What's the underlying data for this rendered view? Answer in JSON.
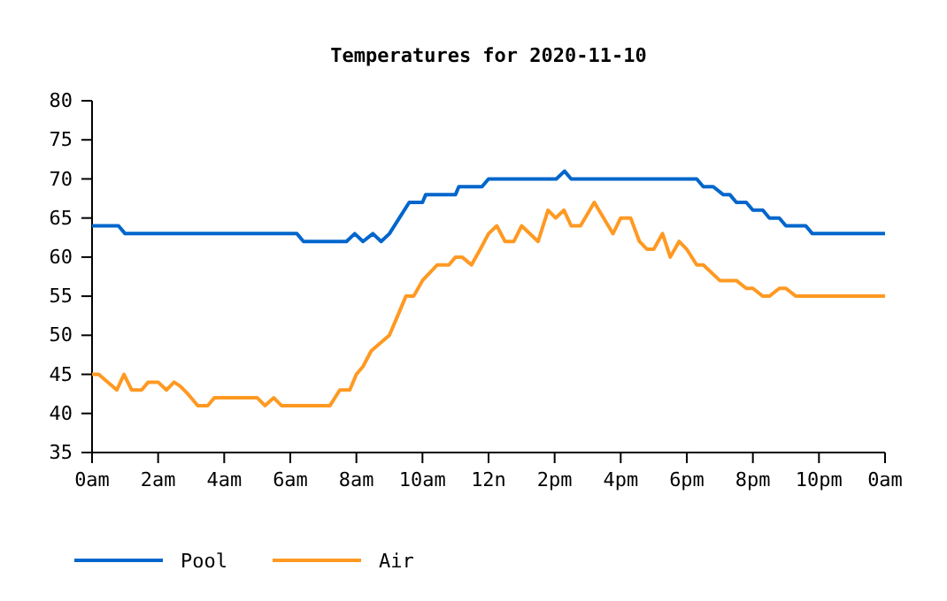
{
  "chart_data": {
    "type": "line",
    "title": "Temperatures for 2020-11-10",
    "xlim": [
      "2020-11-10T00:00",
      "2020-11-11T00:00"
    ],
    "xticks": [
      {
        "value": "2020-11-10T00:00",
        "label": "0am"
      },
      {
        "value": "2020-11-10T02:00",
        "label": "2am"
      },
      {
        "value": "2020-11-10T04:00",
        "label": "4am"
      },
      {
        "value": "2020-11-10T06:00",
        "label": "6am"
      },
      {
        "value": "2020-11-10T08:00",
        "label": "8am"
      },
      {
        "value": "2020-11-10T10:00",
        "label": "10am"
      },
      {
        "value": "2020-11-10T12:00",
        "label": "12n"
      },
      {
        "value": "2020-11-10T14:00",
        "label": "2pm"
      },
      {
        "value": "2020-11-10T16:00",
        "label": "4pm"
      },
      {
        "value": "2020-11-10T18:00",
        "label": "6pm"
      },
      {
        "value": "2020-11-10T20:00",
        "label": "8pm"
      },
      {
        "value": "2020-11-10T22:00",
        "label": "10pm"
      },
      {
        "value": "2020-11-11T00:00",
        "label": "0am"
      }
    ],
    "ylim": [
      35,
      80
    ],
    "yticks": [
      35,
      40,
      45,
      50,
      55,
      60,
      65,
      70,
      75,
      80
    ],
    "grid": false,
    "legend": "bottom left",
    "marker": "none",
    "line_style": "solid",
    "series": [
      {
        "name": "Pool",
        "color": "#0066cc",
        "x": [
          "2020-11-10T00:00",
          "2020-11-10T00:48",
          "2020-11-10T01:00",
          "2020-11-10T06:12",
          "2020-11-10T06:24",
          "2020-11-10T07:42",
          "2020-11-10T07:57",
          "2020-11-10T08:12",
          "2020-11-10T08:30",
          "2020-11-10T08:45",
          "2020-11-10T09:00",
          "2020-11-10T09:18",
          "2020-11-10T09:36",
          "2020-11-10T10:00",
          "2020-11-10T10:06",
          "2020-11-10T11:00",
          "2020-11-10T11:06",
          "2020-11-10T11:48",
          "2020-11-10T12:00",
          "2020-11-10T14:03",
          "2020-11-10T14:18",
          "2020-11-10T14:30",
          "2020-11-10T18:18",
          "2020-11-10T18:30",
          "2020-11-10T18:48",
          "2020-11-10T19:06",
          "2020-11-10T19:18",
          "2020-11-10T19:30",
          "2020-11-10T19:48",
          "2020-11-10T20:00",
          "2020-11-10T20:18",
          "2020-11-10T20:30",
          "2020-11-10T20:48",
          "2020-11-10T21:00",
          "2020-11-10T21:36",
          "2020-11-10T21:48",
          "2020-11-11T00:00"
        ],
        "values": [
          64,
          64,
          63,
          63,
          62,
          62,
          63,
          62,
          63,
          62,
          63,
          65,
          67,
          67,
          68,
          68,
          69,
          69,
          70,
          70,
          71,
          70,
          70,
          69,
          69,
          68,
          68,
          67,
          67,
          66,
          66,
          65,
          65,
          64,
          64,
          63,
          63
        ]
      },
      {
        "name": "Air",
        "color": "#ff9922",
        "x": [
          "2020-11-10T00:00",
          "2020-11-10T00:12",
          "2020-11-10T00:45",
          "2020-11-10T00:58",
          "2020-11-10T01:12",
          "2020-11-10T01:30",
          "2020-11-10T01:42",
          "2020-11-10T02:00",
          "2020-11-10T02:15",
          "2020-11-10T02:29",
          "2020-11-10T02:40",
          "2020-11-10T02:54",
          "2020-11-10T03:12",
          "2020-11-10T03:30",
          "2020-11-10T03:42",
          "2020-11-10T05:00",
          "2020-11-10T05:14",
          "2020-11-10T05:30",
          "2020-11-10T05:44",
          "2020-11-10T07:12",
          "2020-11-10T07:30",
          "2020-11-10T07:48",
          "2020-11-10T08:00",
          "2020-11-10T08:12",
          "2020-11-10T08:27",
          "2020-11-10T09:00",
          "2020-11-10T09:12",
          "2020-11-10T09:30",
          "2020-11-10T09:44",
          "2020-11-10T10:00",
          "2020-11-10T10:27",
          "2020-11-10T10:48",
          "2020-11-10T11:00",
          "2020-11-10T11:12",
          "2020-11-10T11:29",
          "2020-11-10T11:45",
          "2020-11-10T12:00",
          "2020-11-10T12:15",
          "2020-11-10T12:30",
          "2020-11-10T12:46",
          "2020-11-10T13:00",
          "2020-11-10T13:30",
          "2020-11-10T13:48",
          "2020-11-10T14:02",
          "2020-11-10T14:17",
          "2020-11-10T14:30",
          "2020-11-10T14:47",
          "2020-11-10T15:12",
          "2020-11-10T15:46",
          "2020-11-10T16:00",
          "2020-11-10T16:18",
          "2020-11-10T16:34",
          "2020-11-10T16:48",
          "2020-11-10T17:00",
          "2020-11-10T17:16",
          "2020-11-10T17:30",
          "2020-11-10T17:46",
          "2020-11-10T18:00",
          "2020-11-10T18:18",
          "2020-11-10T18:30",
          "2020-11-10T19:00",
          "2020-11-10T19:30",
          "2020-11-10T19:48",
          "2020-11-10T20:00",
          "2020-11-10T20:18",
          "2020-11-10T20:30",
          "2020-11-10T20:48",
          "2020-11-10T21:00",
          "2020-11-10T21:18",
          "2020-11-11T00:00"
        ],
        "values": [
          45,
          45,
          43,
          45,
          43,
          43,
          44,
          44,
          43,
          44,
          43.5,
          42.5,
          41,
          41,
          42,
          42,
          41,
          42,
          41,
          41,
          43,
          43,
          45,
          46,
          48,
          50,
          52,
          55,
          55,
          57,
          59,
          59,
          60,
          60,
          59,
          61,
          63,
          64,
          62,
          62,
          64,
          62,
          66,
          65,
          66,
          64,
          64,
          67,
          63,
          65,
          65,
          62,
          61,
          61,
          63,
          60,
          62,
          61,
          59,
          59,
          57,
          57,
          56,
          56,
          55,
          55,
          56,
          56,
          55,
          55
        ]
      }
    ]
  }
}
